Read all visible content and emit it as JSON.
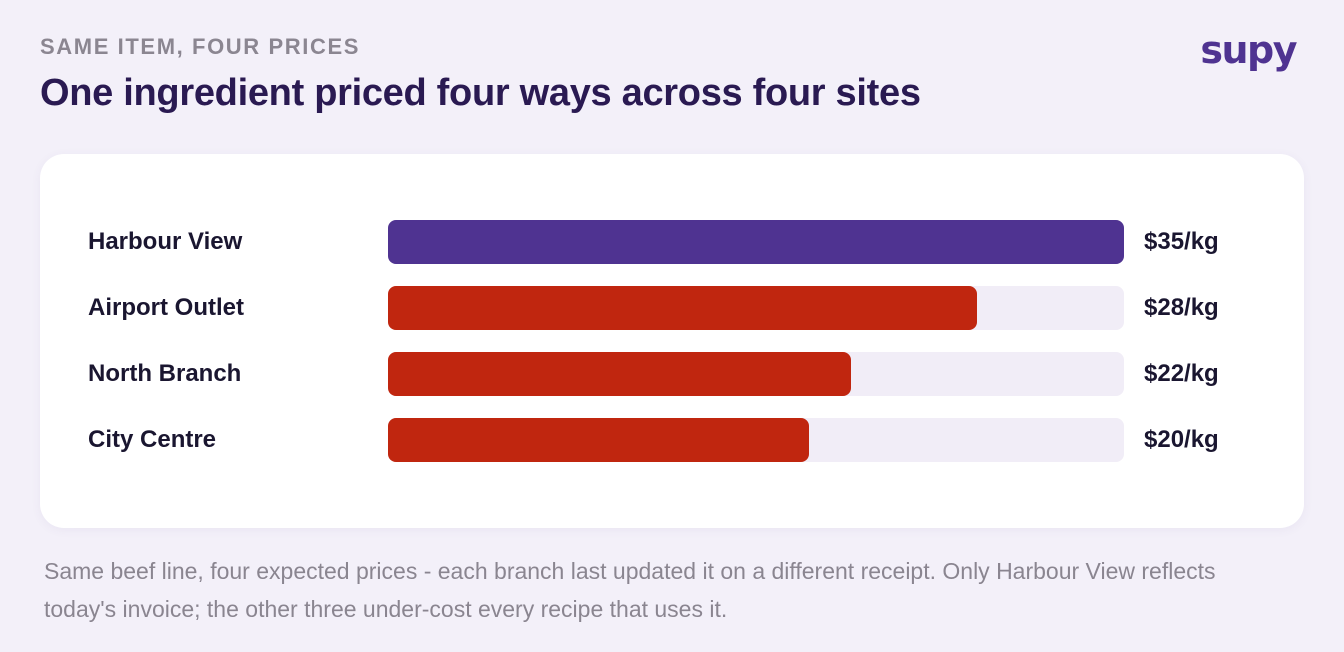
{
  "header": {
    "eyebrow": "SAME ITEM, FOUR PRICES",
    "title": "One ingredient priced four ways across four sites",
    "logo": "supy"
  },
  "chart_data": {
    "type": "bar",
    "orientation": "horizontal",
    "categories": [
      "Harbour View",
      "Airport Outlet",
      "North Branch",
      "City Centre"
    ],
    "values": [
      35,
      28,
      22,
      20
    ],
    "value_labels": [
      "$35/kg",
      "$28/kg",
      "$22/kg",
      "$20/kg"
    ],
    "xlim": [
      0,
      35
    ],
    "grid": false,
    "colors": [
      "#4f3391",
      "#c0260f",
      "#c0260f",
      "#c0260f"
    ],
    "track_color": "#f1edf7"
  },
  "caption": "Same beef line, four expected prices - each branch last updated it on a different receipt. Only Harbour View reflects today's invoice; the other three under-cost every recipe that uses it.",
  "colors": {
    "background": "#f3f0f9",
    "accent": "#4f3391",
    "alert": "#c0260f",
    "title": "#2a1a52"
  }
}
